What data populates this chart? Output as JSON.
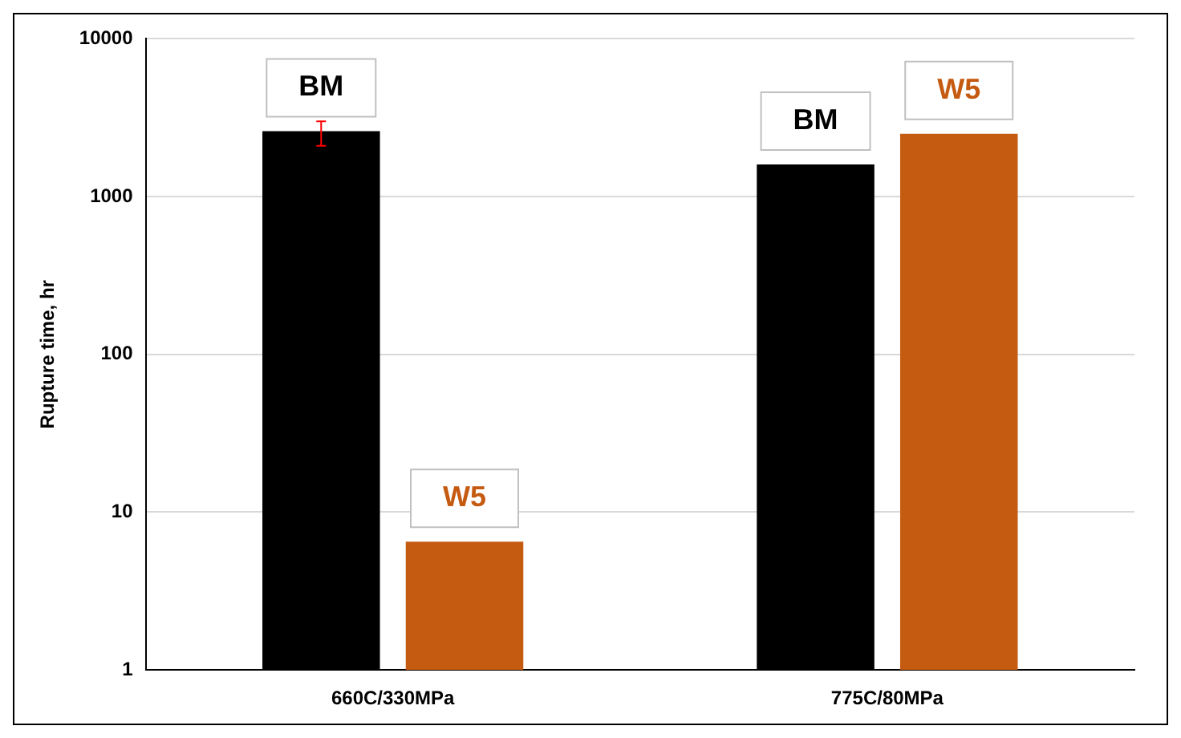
{
  "chart_data": {
    "type": "bar",
    "ylabel": "Rupture time, hr",
    "categories": [
      "660C/330MPa",
      "775C/80MPa"
    ],
    "series": [
      {
        "name": "BM",
        "color": "#000000",
        "values": [
          2600,
          1600
        ],
        "errors": [
          [
            2100,
            3000
          ],
          null
        ]
      },
      {
        "name": "W5",
        "color": "#c55a11",
        "values": [
          6.5,
          2500
        ]
      }
    ],
    "log": true,
    "ylim": [
      1,
      10000
    ],
    "yticks": [
      1,
      10,
      100,
      1000,
      10000
    ],
    "grid": "y",
    "legend": false
  }
}
